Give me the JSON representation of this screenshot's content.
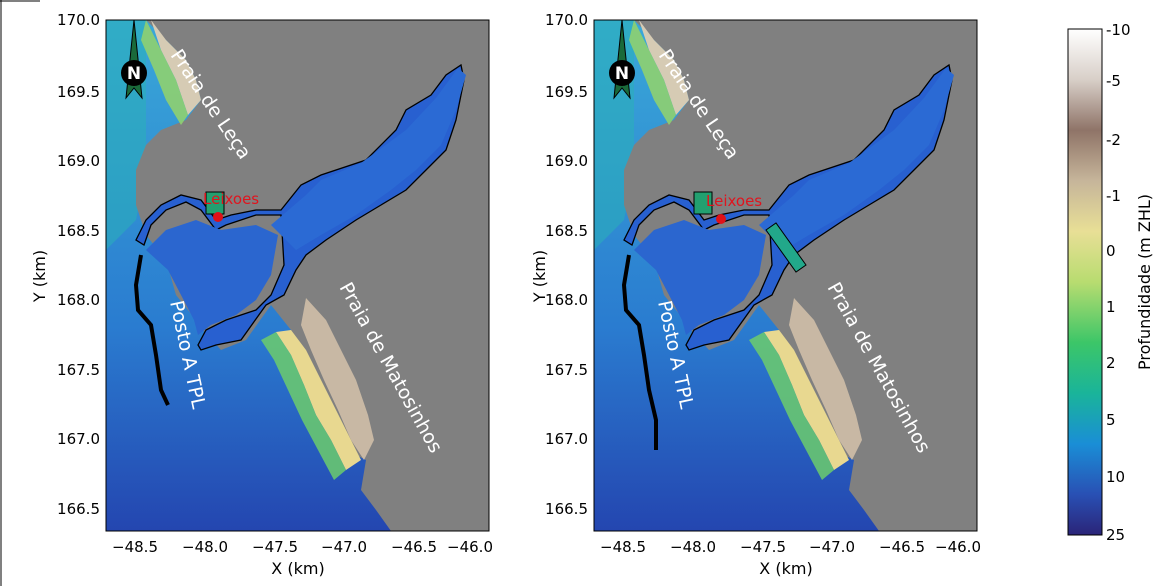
{
  "panels": [
    {
      "xlabel": "X (km)",
      "ylabel": "Y (km)",
      "xticks": [
        "−48.5",
        "−48.0",
        "−47.5",
        "−47.0",
        "−46.5",
        "−46.0"
      ],
      "yticks": [
        "170.0",
        "169.5",
        "169.0",
        "168.5",
        "168.0",
        "167.5",
        "167.0",
        "166.5"
      ],
      "labels": {
        "beach_north": "Praia de Leça",
        "beach_south": "Praia de Matosinhos",
        "port": "Leixoes",
        "station": "Posto A TPL",
        "north": "N"
      }
    },
    {
      "xlabel": "X (km)",
      "ylabel": "Y (km)",
      "xticks": [
        "−48.5",
        "−48.0",
        "−47.5",
        "−47.0",
        "−46.5",
        "−46.0"
      ],
      "yticks": [
        "170.0",
        "169.5",
        "169.0",
        "168.5",
        "168.0",
        "167.5",
        "167.0",
        "166.5"
      ],
      "labels": {
        "beach_north": "Praia de Leça",
        "beach_south": "Praia de Matosinhos",
        "port": "Leixoes",
        "station": "Posto A TPL",
        "north": "N"
      }
    }
  ],
  "colorbar": {
    "label": "Profundidade (m ZHL)",
    "ticks": [
      "-10",
      "-5",
      "-2",
      "-1",
      "0",
      "1",
      "2",
      "5",
      "10",
      "25"
    ],
    "colors": [
      "#ffffff",
      "#8a7065",
      "#e8d88e",
      "#40d06a",
      "#1a9ad6",
      "#2a2a90"
    ]
  },
  "colors": {
    "land": "#808080",
    "water_deep": "#2a4fb8",
    "harbor": "#2860d0",
    "marker": "#e01018"
  }
}
